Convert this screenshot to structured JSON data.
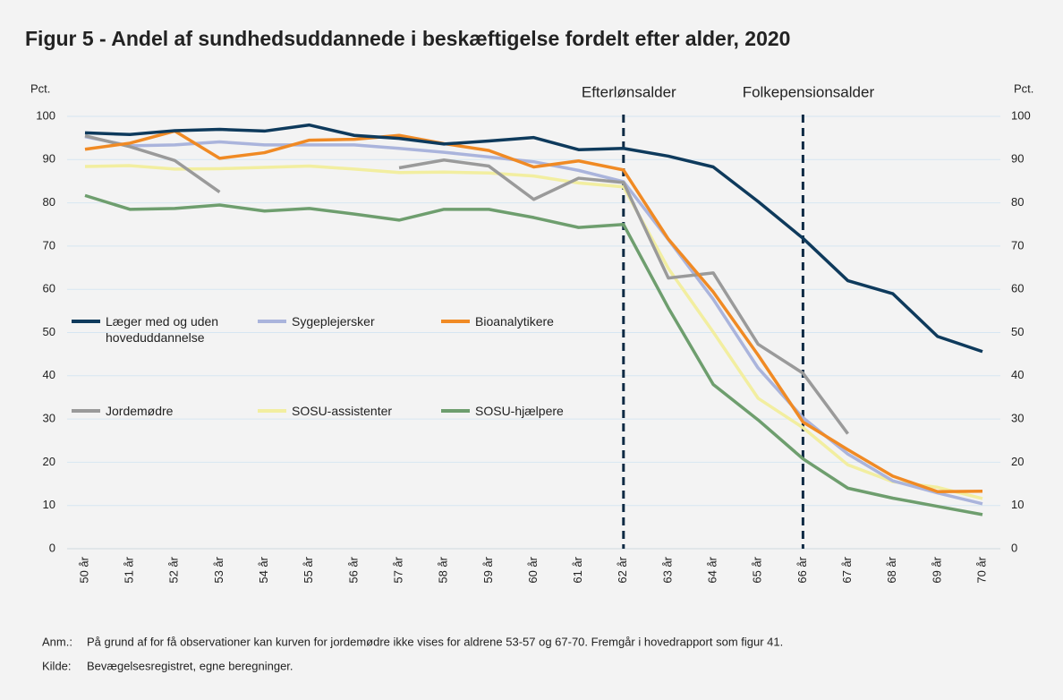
{
  "chart_data": {
    "type": "line",
    "title": "Figur 5 - Andel af sundhedsuddannede i beskæftigelse fordelt efter alder, 2020",
    "y_label": "Pct.",
    "y2_label": "Pct.",
    "categories": [
      "50 år",
      "51 år",
      "52 år",
      "53 år",
      "54 år",
      "55 år",
      "56 år",
      "57 år",
      "58 år",
      "59 år",
      "60 år",
      "61 år",
      "62 år",
      "63 år",
      "64 år",
      "65 år",
      "66 år",
      "67 år",
      "68 år",
      "69 år",
      "70 år"
    ],
    "series": [
      {
        "name": "Læger med og uden hoveduddannelse",
        "color": "#0e3a5c",
        "values": [
          96.2,
          95.8,
          96.7,
          97.0,
          96.6,
          98.0,
          95.6,
          94.9,
          93.6,
          94.3,
          95.1,
          92.3,
          92.6,
          90.8,
          88.3,
          80.3,
          71.8,
          62.0,
          59.0,
          49.1,
          45.6
        ]
      },
      {
        "name": "Sygeplejersker",
        "color": "#aab4dc",
        "values": [
          95.3,
          93.2,
          93.4,
          94.1,
          93.4,
          93.4,
          93.4,
          92.6,
          91.7,
          90.6,
          89.5,
          87.5,
          84.9,
          71.5,
          57.7,
          41.8,
          30.3,
          21.9,
          15.7,
          12.9,
          10.4
        ]
      },
      {
        "name": "Bioanalytikere",
        "color": "#f08a24",
        "values": [
          92.4,
          93.8,
          96.6,
          90.3,
          91.6,
          94.5,
          94.7,
          95.6,
          93.7,
          92.1,
          88.3,
          89.7,
          87.6,
          71.6,
          59.4,
          44.8,
          29.3,
          22.9,
          16.8,
          13.2,
          13.3
        ]
      },
      {
        "name": "Jordemødre",
        "color": "#9a9a9a",
        "values": [
          95.5,
          93.0,
          89.8,
          82.5,
          null,
          null,
          null,
          88.1,
          89.9,
          88.5,
          80.8,
          85.7,
          84.7,
          62.6,
          63.8,
          47.3,
          40.6,
          26.6,
          null,
          null,
          null
        ]
      },
      {
        "name": "SOSU-assistenter",
        "color": "#f2eea0",
        "values": [
          88.4,
          88.6,
          87.8,
          87.9,
          88.2,
          88.5,
          87.8,
          87.0,
          87.1,
          86.9,
          86.2,
          84.6,
          83.7,
          64.8,
          50.1,
          34.8,
          28.0,
          19.4,
          15.5,
          14.2,
          11.6
        ]
      },
      {
        "name": "SOSU-hjælpere",
        "color": "#6e9e6e",
        "values": [
          81.7,
          78.5,
          78.7,
          79.5,
          78.1,
          78.7,
          77.4,
          76.0,
          78.5,
          78.5,
          76.6,
          74.3,
          75.0,
          55.7,
          38.0,
          29.8,
          20.8,
          14.0,
          11.7,
          9.8,
          7.9
        ]
      }
    ],
    "ylim": [
      0,
      100
    ],
    "yticks": [
      0,
      10,
      20,
      30,
      40,
      50,
      60,
      70,
      80,
      90,
      100
    ],
    "y2lim": [
      0,
      100
    ],
    "y2ticks": [
      0,
      10,
      20,
      30,
      40,
      50,
      60,
      70,
      80,
      90,
      100
    ],
    "grid": true,
    "annotations": [
      {
        "label": "Efterlønsalder",
        "x": "62 år"
      },
      {
        "label": "Folkepensionsalder",
        "x": "66 år"
      }
    ],
    "notes": [
      {
        "label": "Anm.:",
        "text": "På grund af for få observationer kan kurven for jordemødre ikke vises for aldrene 53-57 og 67-70. Fremgår i hovedrapport som figur 41."
      },
      {
        "label": "Kilde:",
        "text": "Bevægelsesregistret, egne beregninger."
      }
    ]
  }
}
